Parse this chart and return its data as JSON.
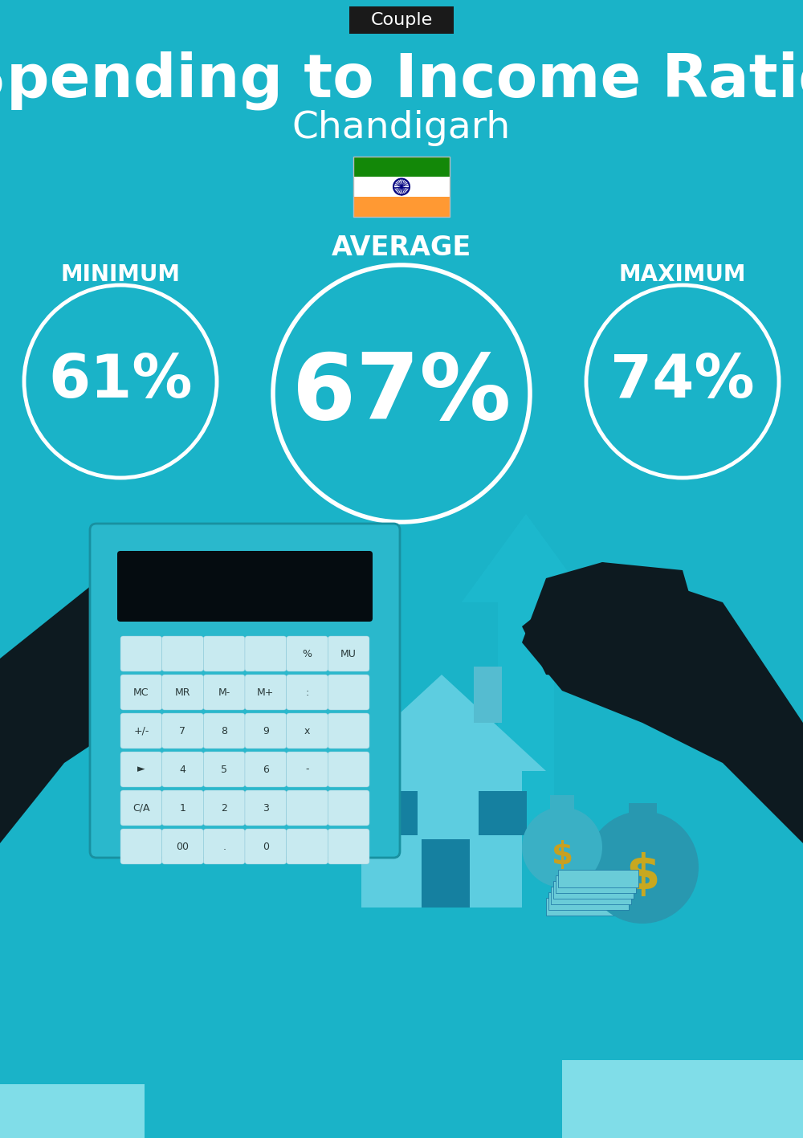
{
  "bg_color": "#1ab3c8",
  "title_badge_text": "Couple",
  "title_badge_bg": "#1a1a1a",
  "title_badge_color": "#ffffff",
  "title_text": "Spending to Income Ratio",
  "subtitle_text": "Chandigarh",
  "title_color": "#ffffff",
  "subtitle_color": "#ffffff",
  "average_label": "AVERAGE",
  "minimum_label": "MINIMUM",
  "maximum_label": "MAXIMUM",
  "average_value": "67%",
  "minimum_value": "61%",
  "maximum_value": "74%",
  "circle_edge_color": "#ffffff",
  "circle_text_color": "#ffffff",
  "label_color": "#ffffff",
  "flag_orange": "#ff9933",
  "flag_white": "#ffffff",
  "flag_green": "#138808",
  "flag_chakra": "#000080",
  "arrow_color": "#20c0d5",
  "house_color": "#5dcde0",
  "dark_color": "#0a2533",
  "calc_body": "#2ab8cc",
  "calc_screen": "#050c10",
  "calc_btn": "#c8eaf0",
  "money_bag_color": "#3ab0c5",
  "money_sign_color": "#c8a020",
  "cuff_color": "#80dde8"
}
